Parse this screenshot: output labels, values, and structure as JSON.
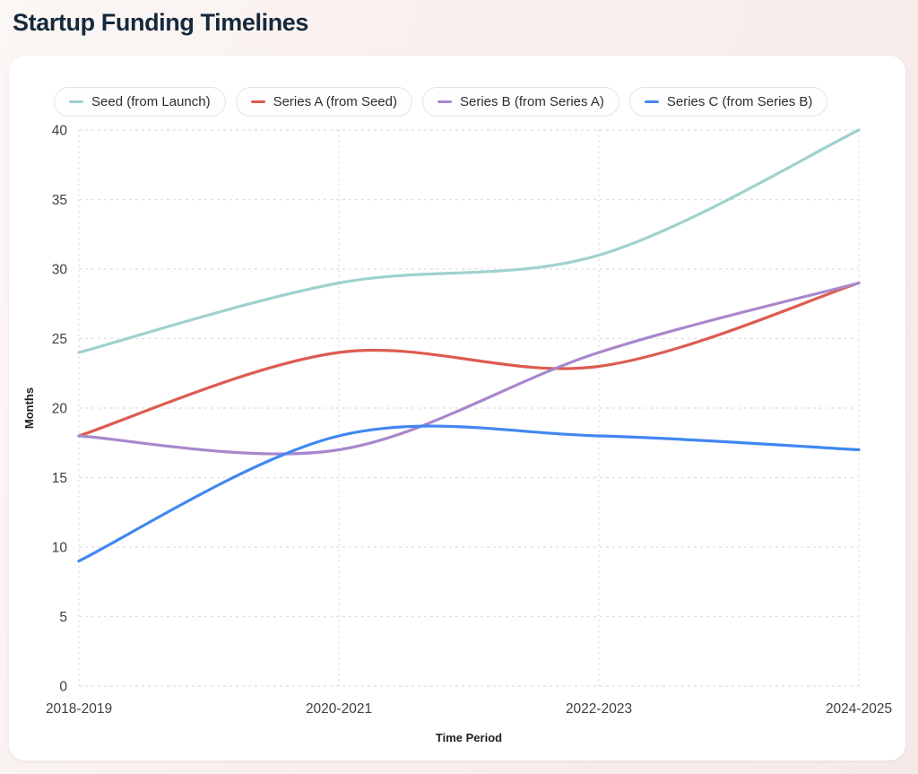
{
  "title": "Startup Funding Timelines",
  "chart_data": {
    "type": "line",
    "title": "Startup Funding Timelines",
    "categories": [
      "2018-2019",
      "2020-2021",
      "2022-2023",
      "2024-2025"
    ],
    "series": [
      {
        "name": "Seed (from Launch)",
        "color": "#9fd1cd",
        "values": [
          24,
          29,
          31,
          40
        ]
      },
      {
        "name": "Series A (from Seed)",
        "color": "#dd5b50",
        "values": [
          18,
          24,
          23,
          29
        ]
      },
      {
        "name": "Series B (from Series A)",
        "color": "#a887cd",
        "values": [
          18,
          17,
          24,
          29
        ]
      },
      {
        "name": "Series C (from Series B)",
        "color": "#4187f2",
        "values": [
          9,
          18,
          18,
          17
        ]
      }
    ],
    "xlabel": "Time Period",
    "ylabel": "Months",
    "ylim": [
      0,
      40
    ],
    "yticks": [
      0,
      5,
      10,
      15,
      20,
      25,
      30,
      35,
      40
    ],
    "grid": "dashed horizontal and vertical at ticks",
    "legend_position": "top",
    "curve": "smooth"
  },
  "colors": {
    "page_title": "#16293c",
    "grid_line": "#dedede",
    "tick_label": "#3f3f3f",
    "axis_title": "#1f1f1f",
    "card_background": "#ffffff",
    "legend_border": "#e4e4e4"
  }
}
